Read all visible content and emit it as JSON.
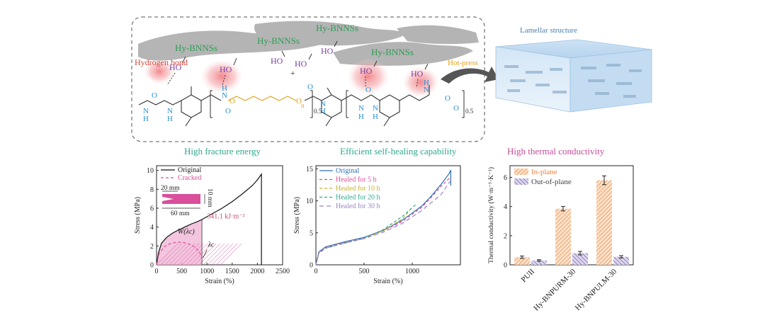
{
  "scheme": {
    "filler_labels": [
      "Hy-BNNSs",
      "Hy-BNNSs",
      "Hy-BNNSs",
      "Hy-BNNSs"
    ],
    "hydrogen_bond_label": "Hydrogen bond",
    "hydroxyl": "HO",
    "hotpress_label": "Hot-press",
    "lamellar_label": "Lamellar structure",
    "plus": "+",
    "subscript_n": "n",
    "subscript_half": "0.5",
    "colors": {
      "green": "#2e9e55",
      "blue": "#2a8fd2",
      "orange": "#e0a01a",
      "purple": "#7a3fa0",
      "red": "#d6453a"
    }
  },
  "chart_data": [
    {
      "type": "line",
      "title": "High fracture energy",
      "xlabel": "Strain (%)",
      "ylabel": "Stress (MPa)",
      "xlim": [
        0,
        2500
      ],
      "ylim": [
        0,
        10.5
      ],
      "xticks": [
        0,
        500,
        1000,
        1500,
        2000,
        2500
      ],
      "yticks": [
        0,
        2,
        4,
        6,
        8,
        10
      ],
      "legend": "top-left",
      "series": [
        {
          "name": "Original",
          "color": "#111111",
          "dash": "",
          "x": [
            0,
            40,
            100,
            200,
            300,
            400,
            500,
            600,
            700,
            800,
            900,
            1100,
            1300,
            1500,
            1700,
            1900,
            2000,
            2080,
            2080
          ],
          "y": [
            0,
            1.3,
            2.3,
            2.9,
            3.3,
            3.6,
            3.85,
            4.1,
            4.35,
            4.55,
            4.8,
            5.4,
            6.0,
            6.7,
            7.5,
            8.4,
            9.0,
            9.6,
            0
          ]
        },
        {
          "name": "Cracked",
          "color": "#d94f9b",
          "dash": "4,3",
          "x": [
            0,
            50,
            150,
            250,
            350,
            450,
            550,
            650,
            750,
            850,
            900
          ],
          "y": [
            0,
            1.2,
            1.9,
            2.2,
            2.35,
            2.4,
            2.35,
            2.2,
            1.9,
            1.4,
            0.6
          ]
        }
      ],
      "annotations": {
        "energy": "341.1 kJ·m⁻²",
        "work": "W(λc)",
        "critical": "λc",
        "dim_width": "20 mm",
        "dim_length": "60 mm",
        "dim_height": "10 mm"
      },
      "shaded_region": {
        "x": [
          0,
          900
        ]
      }
    },
    {
      "type": "line",
      "title": "Efficient self-healing capability",
      "xlabel": "Strain (%)",
      "ylabel": "Stress (MPa)",
      "xlim": [
        0,
        1500
      ],
      "ylim": [
        0,
        15.5
      ],
      "xticks": [
        0,
        500,
        1000
      ],
      "yticks": [
        0,
        5,
        10,
        15
      ],
      "legend": "top-left",
      "series": [
        {
          "name": "Original",
          "color": "#2e6fb5",
          "dash": "",
          "x": [
            0,
            30,
            100,
            300,
            500,
            700,
            900,
            1100,
            1200,
            1300,
            1380,
            1400,
            1400
          ],
          "y": [
            0,
            2.0,
            2.8,
            3.6,
            4.3,
            5.4,
            7.0,
            9.2,
            10.8,
            12.6,
            14.2,
            14.8,
            12.4
          ]
        },
        {
          "name": "Healed for 5 h",
          "color": "#d94f9b",
          "dash": "4,3",
          "x": [
            0,
            30,
            100,
            300,
            500,
            700,
            900,
            1100,
            1200,
            1300,
            1390
          ],
          "y": [
            0,
            1.9,
            2.7,
            3.5,
            4.2,
            5.3,
            6.8,
            9.0,
            10.6,
            12.3,
            13.6
          ]
        },
        {
          "name": "Healed for 10 h",
          "color": "#c9b22a",
          "dash": "4,3",
          "x": [
            0,
            30,
            100,
            300,
            500,
            700,
            900,
            1000
          ],
          "y": [
            0,
            1.8,
            2.6,
            3.4,
            4.1,
            5.3,
            7.2,
            9.0
          ]
        },
        {
          "name": "Healed for 20 h",
          "color": "#2fa88c",
          "dash": "4,3",
          "x": [
            0,
            30,
            100,
            300,
            500,
            700,
            900,
            1050
          ],
          "y": [
            0,
            1.8,
            2.6,
            3.4,
            4.2,
            5.5,
            7.6,
            9.6
          ]
        },
        {
          "name": "Healed for 30 h",
          "color": "#9a86c8",
          "dash": "6,4",
          "x": [
            0,
            30,
            100,
            300,
            500,
            700,
            900,
            1100,
            1300,
            1400
          ],
          "y": [
            0,
            1.8,
            2.6,
            3.4,
            4.1,
            5.1,
            6.5,
            8.5,
            11.0,
            13.2
          ]
        }
      ]
    },
    {
      "type": "bar",
      "title": "High thermal conductivity",
      "xlabel": "",
      "ylabel": "Thermal conductivity (W·m⁻¹·K⁻¹)",
      "ylim": [
        0,
        6.8
      ],
      "yticks": [
        0,
        2,
        4,
        6
      ],
      "legend": "top-left",
      "categories": [
        "PUII",
        "Hy-BNPURM-30",
        "Hy-BNPULM-30"
      ],
      "series": [
        {
          "name": "In-plane",
          "color": "#e8823a",
          "values": [
            0.52,
            3.85,
            5.8
          ],
          "errors": [
            0.08,
            0.15,
            0.3
          ]
        },
        {
          "name": "Out-of-plane",
          "color": "#6a55a8",
          "values": [
            0.3,
            0.8,
            0.55
          ],
          "errors": [
            0.05,
            0.12,
            0.08
          ]
        }
      ]
    }
  ]
}
